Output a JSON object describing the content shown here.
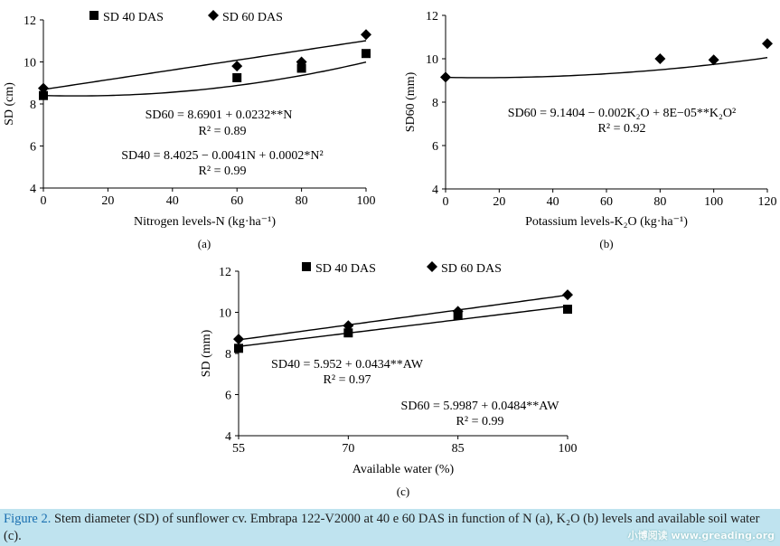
{
  "chart_data": [
    {
      "id": "a",
      "type": "scatter",
      "panel_label": "(a)",
      "xlabel": "Nitrogen levels-N (kg·ha⁻¹)",
      "ylabel": "SD (cm)",
      "xlim": [
        0,
        100
      ],
      "ylim": [
        4,
        12
      ],
      "xticks": [
        "0",
        "20",
        "40",
        "60",
        "80",
        "100"
      ],
      "yticks": [
        "4",
        "6",
        "8",
        "10",
        "12"
      ],
      "legend": "top",
      "series": [
        {
          "name": "SD 40 DAS",
          "marker": "square",
          "x": [
            0,
            60,
            80,
            100
          ],
          "y": [
            8.4,
            9.25,
            9.7,
            10.4
          ],
          "fit": {
            "a": 8.4025,
            "b": -0.0041,
            "c": 0.0002
          }
        },
        {
          "name": "SD 60 DAS",
          "marker": "diamond",
          "x": [
            0,
            60,
            80,
            100
          ],
          "y": [
            8.75,
            9.8,
            10.0,
            11.3
          ],
          "fit": {
            "a": 8.6901,
            "b": 0.0232,
            "c": 0
          }
        }
      ],
      "equations": [
        {
          "text": "SD60 = 8.6901 + 0.0232**N",
          "r2": "R² = 0.89"
        },
        {
          "text": "SD40 = 8.4025 − 0.0041N + 0.0002*N²",
          "r2": "R² = 0.99"
        }
      ]
    },
    {
      "id": "b",
      "type": "scatter",
      "panel_label": "(b)",
      "xlabel": "Potassium levels-K₂O (kg·ha⁻¹)",
      "ylabel": "SD60 (mm)",
      "xlim": [
        0,
        120
      ],
      "ylim": [
        4,
        12
      ],
      "xticks": [
        "0",
        "20",
        "40",
        "60",
        "80",
        "100",
        "120"
      ],
      "yticks": [
        "4",
        "6",
        "8",
        "10",
        "12"
      ],
      "legend": "none",
      "series": [
        {
          "name": "SD 60 DAS",
          "marker": "diamond",
          "x": [
            0,
            80,
            100,
            120
          ],
          "y": [
            9.15,
            10.0,
            9.95,
            10.7
          ],
          "fit": {
            "a": 9.1404,
            "b": -0.002,
            "c": 8e-05
          }
        }
      ],
      "equations": [
        {
          "text": "SD60 = 9.1404 − 0.002K₂O + 8E−05**K₂O²",
          "r2": "R² = 0.92"
        }
      ]
    },
    {
      "id": "c",
      "type": "scatter",
      "panel_label": "(c)",
      "xlabel": "Available water (%)",
      "ylabel": "SD (mm)",
      "xlim": [
        55,
        100
      ],
      "ylim": [
        4,
        12
      ],
      "xticks": [
        "55",
        "70",
        "85",
        "100"
      ],
      "yticks": [
        "4",
        "6",
        "8",
        "10",
        "12"
      ],
      "legend": "top",
      "series": [
        {
          "name": "SD 40 DAS",
          "marker": "square",
          "x": [
            55,
            70,
            85,
            100
          ],
          "y": [
            8.25,
            9.0,
            9.85,
            10.15
          ],
          "fit": {
            "a": 5.952,
            "b": 0.0434,
            "c": 0
          }
        },
        {
          "name": "SD 60 DAS",
          "marker": "diamond",
          "x": [
            55,
            70,
            85,
            100
          ],
          "y": [
            8.7,
            9.35,
            10.05,
            10.85
          ],
          "fit": {
            "a": 5.9987,
            "b": 0.0484,
            "c": 0
          }
        }
      ],
      "equations": [
        {
          "text": "SD40 = 5.952 + 0.0434**AW",
          "r2": "R² = 0.97"
        },
        {
          "text": "SD60 = 5.9987 + 0.0484**AW",
          "r2": "R² = 0.99"
        }
      ]
    }
  ],
  "caption": {
    "lead": "Figure 2.",
    "text": "Stem diameter (SD) of sunflower cv. Embrapa 122-V2000 at 40 e 60 DAS in function of N (a), K₂O (b) levels and available soil water (c)."
  },
  "watermark": "小博阅读 www.greading.org"
}
